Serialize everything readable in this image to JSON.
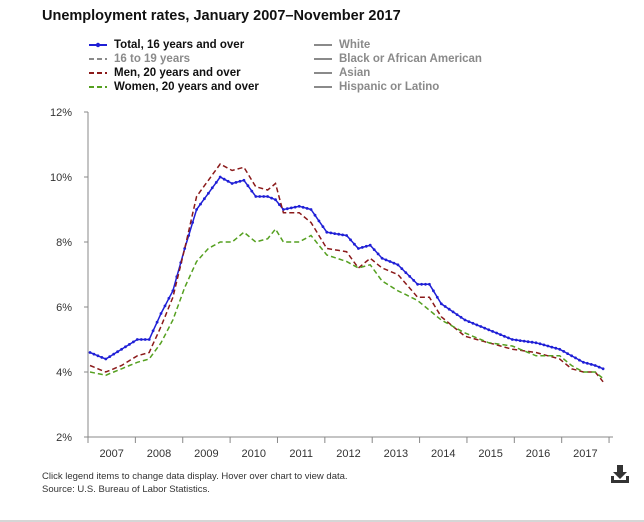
{
  "title": "Unemployment rates, January 2007–November 2017",
  "footnote": {
    "line1": "Click legend items to change data display. Hover over chart to view data.",
    "line2": "Source: U.S. Bureau of Labor Statistics."
  },
  "download_icon": "download-icon",
  "colors": {
    "total": "#1f1fd6",
    "men": "#8b1a1a",
    "women": "#55a020",
    "legend_off": "#8a8a8a",
    "axis": "#888888"
  },
  "legend": {
    "left": [
      {
        "label": "Total, 16 years and over",
        "series": "total",
        "state": "on",
        "style": "marker-line"
      },
      {
        "label": "16 to 19 years",
        "series": "teens",
        "state": "off",
        "style": "dashed"
      },
      {
        "label": "Men, 20 years and over",
        "series": "men",
        "state": "on",
        "style": "dashed"
      },
      {
        "label": "Women, 20 years and over",
        "series": "women",
        "state": "on",
        "style": "dashed"
      }
    ],
    "right": [
      {
        "label": "White",
        "series": "white",
        "state": "off",
        "style": "solid"
      },
      {
        "label": "Black or African American",
        "series": "black",
        "state": "off",
        "style": "solid"
      },
      {
        "label": "Asian",
        "series": "asian",
        "state": "off",
        "style": "solid"
      },
      {
        "label": "Hispanic or Latino",
        "series": "hispanic",
        "state": "off",
        "style": "solid"
      }
    ]
  },
  "chart_data": {
    "type": "line",
    "title": "Unemployment rates, January 2007–November 2017",
    "xlabel": "",
    "ylabel": "",
    "x_ticks": [
      "2007",
      "2008",
      "2009",
      "2010",
      "2011",
      "2012",
      "2013",
      "2014",
      "2015",
      "2016",
      "2017"
    ],
    "y_ticks": [
      "2%",
      "4%",
      "6%",
      "8%",
      "10%",
      "12%"
    ],
    "ylim": [
      2,
      12
    ],
    "xlim": [
      "2007-01",
      "2017-11"
    ],
    "grid": false,
    "legend_position": "top",
    "series": [
      {
        "name": "Total, 16 years and over",
        "key": "total",
        "anchors": [
          [
            "2007-01",
            4.6
          ],
          [
            "2007-05",
            4.4
          ],
          [
            "2007-09",
            4.7
          ],
          [
            "2008-01",
            5.0
          ],
          [
            "2008-04",
            5.0
          ],
          [
            "2008-07",
            5.8
          ],
          [
            "2008-10",
            6.5
          ],
          [
            "2009-01",
            7.8
          ],
          [
            "2009-04",
            9.0
          ],
          [
            "2009-07",
            9.5
          ],
          [
            "2009-10",
            10.0
          ],
          [
            "2010-01",
            9.8
          ],
          [
            "2010-04",
            9.9
          ],
          [
            "2010-07",
            9.4
          ],
          [
            "2010-10",
            9.4
          ],
          [
            "2010-12",
            9.3
          ],
          [
            "2011-02",
            9.0
          ],
          [
            "2011-06",
            9.1
          ],
          [
            "2011-09",
            9.0
          ],
          [
            "2012-01",
            8.3
          ],
          [
            "2012-06",
            8.2
          ],
          [
            "2012-09",
            7.8
          ],
          [
            "2012-12",
            7.9
          ],
          [
            "2013-03",
            7.5
          ],
          [
            "2013-07",
            7.3
          ],
          [
            "2013-12",
            6.7
          ],
          [
            "2014-03",
            6.7
          ],
          [
            "2014-06",
            6.1
          ],
          [
            "2014-12",
            5.6
          ],
          [
            "2015-06",
            5.3
          ],
          [
            "2015-12",
            5.0
          ],
          [
            "2016-06",
            4.9
          ],
          [
            "2016-12",
            4.7
          ],
          [
            "2017-03",
            4.5
          ],
          [
            "2017-06",
            4.3
          ],
          [
            "2017-09",
            4.2
          ],
          [
            "2017-11",
            4.1
          ]
        ]
      },
      {
        "name": "Men, 20 years and over",
        "key": "men",
        "anchors": [
          [
            "2007-01",
            4.2
          ],
          [
            "2007-05",
            4.0
          ],
          [
            "2007-09",
            4.2
          ],
          [
            "2008-01",
            4.5
          ],
          [
            "2008-04",
            4.6
          ],
          [
            "2008-07",
            5.4
          ],
          [
            "2008-10",
            6.3
          ],
          [
            "2009-01",
            7.8
          ],
          [
            "2009-04",
            9.4
          ],
          [
            "2009-07",
            9.9
          ],
          [
            "2009-10",
            10.4
          ],
          [
            "2010-01",
            10.2
          ],
          [
            "2010-04",
            10.3
          ],
          [
            "2010-07",
            9.7
          ],
          [
            "2010-10",
            9.6
          ],
          [
            "2010-12",
            9.8
          ],
          [
            "2011-02",
            8.9
          ],
          [
            "2011-06",
            8.9
          ],
          [
            "2011-09",
            8.6
          ],
          [
            "2012-01",
            7.8
          ],
          [
            "2012-06",
            7.7
          ],
          [
            "2012-09",
            7.2
          ],
          [
            "2012-12",
            7.5
          ],
          [
            "2013-03",
            7.2
          ],
          [
            "2013-07",
            7.0
          ],
          [
            "2013-12",
            6.3
          ],
          [
            "2014-03",
            6.3
          ],
          [
            "2014-06",
            5.7
          ],
          [
            "2014-12",
            5.1
          ],
          [
            "2015-06",
            4.9
          ],
          [
            "2015-12",
            4.7
          ],
          [
            "2016-06",
            4.6
          ],
          [
            "2016-12",
            4.4
          ],
          [
            "2017-03",
            4.1
          ],
          [
            "2017-06",
            4.0
          ],
          [
            "2017-09",
            4.0
          ],
          [
            "2017-11",
            3.7
          ]
        ]
      },
      {
        "name": "Women, 20 years and over",
        "key": "women",
        "anchors": [
          [
            "2007-01",
            4.0
          ],
          [
            "2007-05",
            3.9
          ],
          [
            "2007-09",
            4.1
          ],
          [
            "2008-01",
            4.3
          ],
          [
            "2008-04",
            4.4
          ],
          [
            "2008-07",
            4.9
          ],
          [
            "2008-10",
            5.6
          ],
          [
            "2009-01",
            6.6
          ],
          [
            "2009-04",
            7.4
          ],
          [
            "2009-07",
            7.8
          ],
          [
            "2009-10",
            8.0
          ],
          [
            "2010-01",
            8.0
          ],
          [
            "2010-04",
            8.3
          ],
          [
            "2010-07",
            8.0
          ],
          [
            "2010-10",
            8.1
          ],
          [
            "2010-12",
            8.4
          ],
          [
            "2011-02",
            8.0
          ],
          [
            "2011-06",
            8.0
          ],
          [
            "2011-09",
            8.2
          ],
          [
            "2012-01",
            7.6
          ],
          [
            "2012-06",
            7.4
          ],
          [
            "2012-09",
            7.2
          ],
          [
            "2012-12",
            7.3
          ],
          [
            "2013-03",
            6.8
          ],
          [
            "2013-07",
            6.5
          ],
          [
            "2013-12",
            6.2
          ],
          [
            "2014-03",
            5.9
          ],
          [
            "2014-06",
            5.6
          ],
          [
            "2014-12",
            5.2
          ],
          [
            "2015-06",
            4.9
          ],
          [
            "2015-12",
            4.8
          ],
          [
            "2016-06",
            4.5
          ],
          [
            "2016-12",
            4.5
          ],
          [
            "2017-03",
            4.2
          ],
          [
            "2017-06",
            4.0
          ],
          [
            "2017-09",
            4.0
          ],
          [
            "2017-11",
            3.8
          ]
        ]
      }
    ]
  }
}
